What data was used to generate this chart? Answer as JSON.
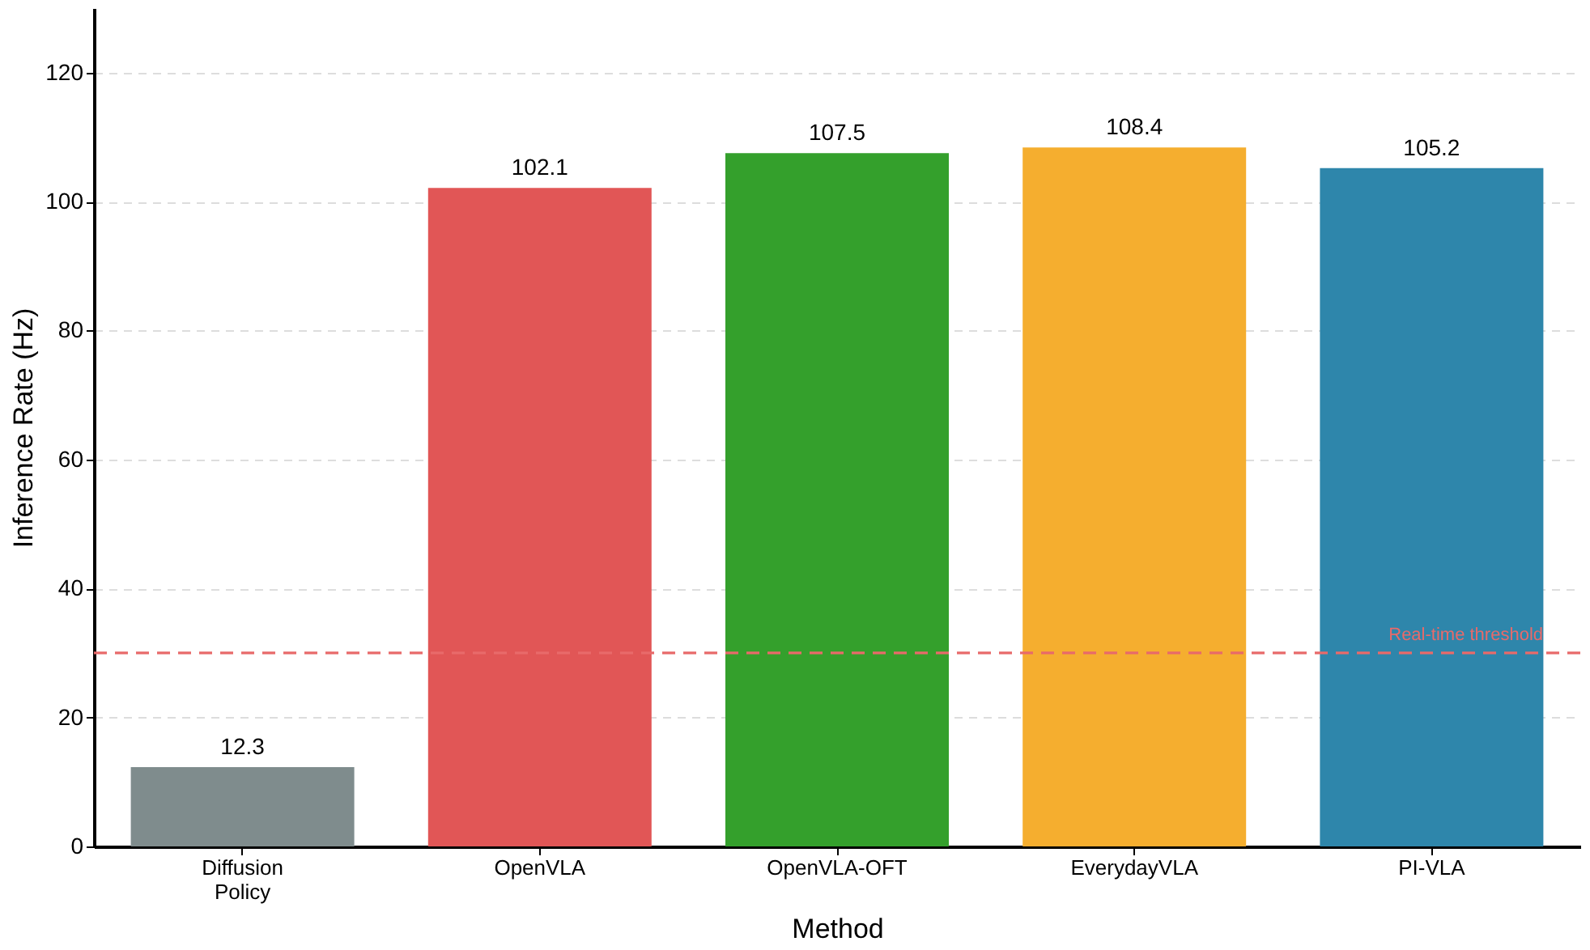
{
  "chart_data": {
    "type": "bar",
    "xlabel": "Method",
    "ylabel": "Inference Rate (Hz)",
    "categories": [
      "Diffusion Policy",
      "OpenVLA",
      "OpenVLA-OFT",
      "EverydayVLA",
      "PI-VLA"
    ],
    "values": [
      12.3,
      102.1,
      107.5,
      108.4,
      105.2
    ],
    "colors": [
      "#7f8c8d",
      "#e15656",
      "#34a02c",
      "#f5ae2f",
      "#2e86ab"
    ],
    "data_labels": true,
    "ylim": [
      0,
      130
    ],
    "yticks": [
      0,
      20,
      40,
      60,
      80,
      100,
      120
    ],
    "grid": "y",
    "ref_lines": [
      {
        "axis": "y",
        "value": 30,
        "label": "Real-time threshold",
        "color": "#e86a6a",
        "line_style": "dashed"
      }
    ]
  }
}
